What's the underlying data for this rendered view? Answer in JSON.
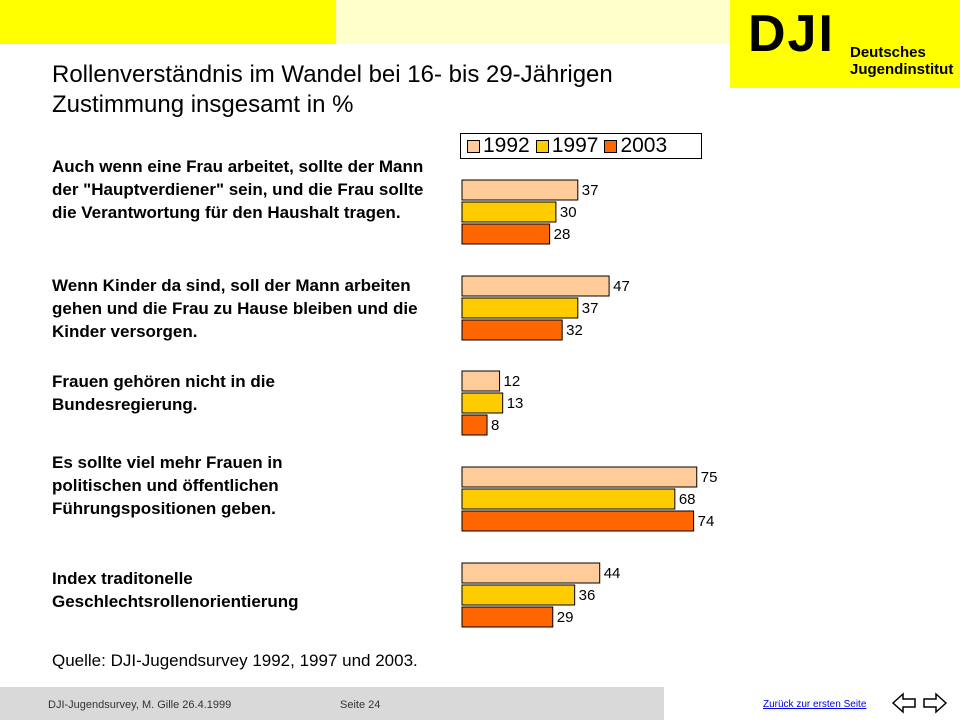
{
  "header": {
    "title_line1": "Rollenverständnis im Wandel bei 16- bis 29-Jährigen",
    "title_line2": "Zustimmung insgesamt in %",
    "logo_mark": "DJI",
    "logo_line1": "Deutsches",
    "logo_line2": "Jugendinstitut"
  },
  "questions": [
    "Auch wenn eine Frau arbeitet, sollte der Mann der \"Hauptverdiener\" sein, und die Frau sollte die Verantwortung für den Haushalt tragen.",
    "Wenn Kinder da sind, soll der Mann arbeiten gehen und die Frau zu Hause bleiben und die Kinder versorgen.",
    "Frauen gehören nicht in die Bundesregierung.",
    "Es sollte viel mehr Frauen in politischen und öffentlichen Führungspositionen geben.",
    "Index traditonelle Geschlechtsrollenorientierung"
  ],
  "source": "Quelle: DJI-Jugendsurvey 1992, 1997 und 2003.",
  "footer": {
    "left": "DJI-Jugendsurvey, M. Gille   26.4.1999",
    "page": "Seite 24",
    "back_link": "Zurück zur ersten Seite"
  },
  "colors": {
    "1992": "#ffcc99",
    "1997": "#ffcc00",
    "2003": "#ff6600"
  },
  "chart_data": {
    "type": "bar",
    "orientation": "horizontal",
    "categories": [
      "Auch wenn eine Frau arbeitet, sollte der Mann der \"Hauptverdiener\" sein, und die Frau sollte die Verantwortung für den Haushalt tragen.",
      "Wenn Kinder da sind, soll der Mann arbeiten gehen und die Frau zu Hause bleiben und die Kinder versorgen.",
      "Frauen gehören nicht in die Bundesregierung.",
      "Es sollte viel mehr Frauen in politischen und öffentlichen Führungspositionen geben.",
      "Index traditonelle Geschlechtsrollenorientierung"
    ],
    "series": [
      {
        "name": "1992",
        "values": [
          37,
          47,
          12,
          75,
          44
        ]
      },
      {
        "name": "1997",
        "values": [
          30,
          37,
          13,
          68,
          36
        ]
      },
      {
        "name": "2003",
        "values": [
          28,
          32,
          8,
          74,
          29
        ]
      }
    ],
    "title": "Rollenverständnis im Wandel bei 16- bis 29-Jährigen",
    "subtitle": "Zustimmung insgesamt in %",
    "legend": "top",
    "grid": false
  }
}
